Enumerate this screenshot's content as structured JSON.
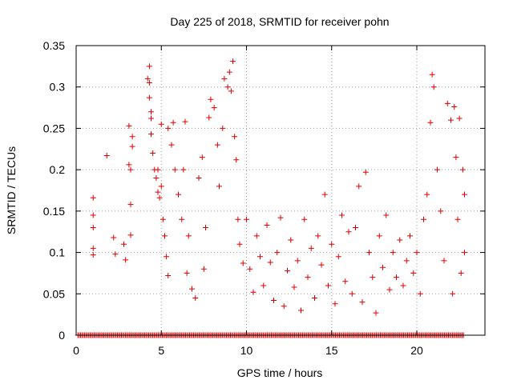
{
  "chart_data": {
    "type": "scatter",
    "title": "Day 225 of 2018, SRMTID for receiver pohn",
    "xlabel": "GPS time / hours",
    "ylabel": "SRMTID / TECUs",
    "xlim": [
      0,
      24
    ],
    "ylim": [
      0,
      0.35
    ],
    "grid": true,
    "marker": "+",
    "color": "#e00000",
    "x_ticks": [
      0,
      5,
      10,
      15,
      20
    ],
    "x_tick_labels": [
      "0",
      "5",
      "10",
      "15",
      "20"
    ],
    "y_ticks": [
      0,
      0.05,
      0.1,
      0.15,
      0.2,
      0.25,
      0.3,
      0.35
    ],
    "y_tick_labels": [
      "0",
      "0.05",
      "0.1",
      "0.15",
      "0.2",
      "0.25",
      "0.3",
      "0.35"
    ],
    "series": [
      {
        "name": "SRMTID",
        "description": "Dense scatter; representative sample points read from figure (hours, TECU)",
        "points": [
          [
            1.0,
            0.166
          ],
          [
            1.0,
            0.145
          ],
          [
            1.0,
            0.13
          ],
          [
            1.0,
            0.105
          ],
          [
            1.0,
            0.097
          ],
          [
            1.8,
            0.217
          ],
          [
            2.2,
            0.118
          ],
          [
            2.3,
            0.098
          ],
          [
            2.8,
            0.11
          ],
          [
            2.9,
            0.091
          ],
          [
            3.1,
            0.253
          ],
          [
            3.1,
            0.206
          ],
          [
            3.2,
            0.2
          ],
          [
            3.2,
            0.158
          ],
          [
            3.3,
            0.24
          ],
          [
            3.3,
            0.228
          ],
          [
            3.2,
            0.121
          ],
          [
            4.2,
            0.31
          ],
          [
            4.3,
            0.325
          ],
          [
            4.3,
            0.305
          ],
          [
            4.3,
            0.287
          ],
          [
            4.4,
            0.27
          ],
          [
            4.4,
            0.262
          ],
          [
            4.4,
            0.243
          ],
          [
            4.5,
            0.22
          ],
          [
            4.6,
            0.2
          ],
          [
            4.7,
            0.19
          ],
          [
            4.8,
            0.2
          ],
          [
            4.8,
            0.173
          ],
          [
            4.9,
            0.166
          ],
          [
            5.0,
            0.255
          ],
          [
            5.0,
            0.18
          ],
          [
            5.1,
            0.14
          ],
          [
            5.2,
            0.12
          ],
          [
            5.3,
            0.095
          ],
          [
            5.4,
            0.25
          ],
          [
            5.4,
            0.072
          ],
          [
            5.6,
            0.23
          ],
          [
            5.7,
            0.257
          ],
          [
            5.8,
            0.2
          ],
          [
            6.0,
            0.17
          ],
          [
            6.2,
            0.14
          ],
          [
            6.3,
            0.2
          ],
          [
            6.4,
            0.258
          ],
          [
            6.5,
            0.075
          ],
          [
            6.6,
            0.12
          ],
          [
            6.8,
            0.056
          ],
          [
            7.0,
            0.045
          ],
          [
            7.2,
            0.19
          ],
          [
            7.4,
            0.215
          ],
          [
            7.5,
            0.08
          ],
          [
            7.6,
            0.13
          ],
          [
            7.8,
            0.263
          ],
          [
            7.9,
            0.285
          ],
          [
            8.1,
            0.275
          ],
          [
            8.3,
            0.23
          ],
          [
            8.4,
            0.18
          ],
          [
            8.6,
            0.25
          ],
          [
            8.7,
            0.31
          ],
          [
            8.9,
            0.3
          ],
          [
            9.0,
            0.318
          ],
          [
            9.1,
            0.295
          ],
          [
            9.2,
            0.331
          ],
          [
            9.3,
            0.24
          ],
          [
            9.4,
            0.212
          ],
          [
            9.5,
            0.14
          ],
          [
            9.6,
            0.11
          ],
          [
            9.8,
            0.087
          ],
          [
            10.0,
            0.14
          ],
          [
            10.2,
            0.08
          ],
          [
            10.4,
            0.052
          ],
          [
            10.6,
            0.12
          ],
          [
            10.8,
            0.095
          ],
          [
            11.0,
            0.06
          ],
          [
            11.2,
            0.133
          ],
          [
            11.4,
            0.088
          ],
          [
            11.6,
            0.042
          ],
          [
            11.8,
            0.1
          ],
          [
            12.0,
            0.142
          ],
          [
            12.2,
            0.035
          ],
          [
            12.4,
            0.078
          ],
          [
            12.6,
            0.115
          ],
          [
            12.8,
            0.058
          ],
          [
            13.0,
            0.09
          ],
          [
            13.2,
            0.03
          ],
          [
            13.4,
            0.14
          ],
          [
            13.6,
            0.07
          ],
          [
            13.8,
            0.105
          ],
          [
            14.0,
            0.045
          ],
          [
            14.2,
            0.12
          ],
          [
            14.4,
            0.085
          ],
          [
            14.6,
            0.17
          ],
          [
            14.8,
            0.06
          ],
          [
            15.0,
            0.11
          ],
          [
            15.2,
            0.038
          ],
          [
            15.4,
            0.095
          ],
          [
            15.6,
            0.145
          ],
          [
            15.8,
            0.065
          ],
          [
            16.0,
            0.125
          ],
          [
            16.2,
            0.05
          ],
          [
            16.4,
            0.13
          ],
          [
            16.6,
            0.18
          ],
          [
            16.8,
            0.04
          ],
          [
            17.0,
            0.197
          ],
          [
            17.2,
            0.1
          ],
          [
            17.4,
            0.07
          ],
          [
            17.6,
            0.027
          ],
          [
            17.8,
            0.12
          ],
          [
            18.0,
            0.082
          ],
          [
            18.2,
            0.145
          ],
          [
            18.4,
            0.055
          ],
          [
            18.6,
            0.1
          ],
          [
            18.8,
            0.07
          ],
          [
            19.0,
            0.115
          ],
          [
            19.2,
            0.06
          ],
          [
            19.4,
            0.09
          ],
          [
            19.6,
            0.12
          ],
          [
            19.8,
            0.075
          ],
          [
            20.0,
            0.1
          ],
          [
            20.2,
            0.05
          ],
          [
            20.4,
            0.14
          ],
          [
            20.6,
            0.17
          ],
          [
            20.8,
            0.257
          ],
          [
            20.9,
            0.315
          ],
          [
            21.0,
            0.3
          ],
          [
            21.2,
            0.2
          ],
          [
            21.4,
            0.15
          ],
          [
            21.6,
            0.09
          ],
          [
            21.8,
            0.28
          ],
          [
            22.0,
            0.26
          ],
          [
            22.1,
            0.05
          ],
          [
            22.2,
            0.276
          ],
          [
            22.3,
            0.215
          ],
          [
            22.4,
            0.14
          ],
          [
            22.5,
            0.262
          ],
          [
            22.6,
            0.075
          ],
          [
            22.7,
            0.2
          ],
          [
            22.8,
            0.17
          ],
          [
            22.8,
            0.1
          ]
        ],
        "zero_band": {
          "description": "row of markers at y = 0 along the axis",
          "x_range": [
            0.1,
            22.8
          ],
          "y": 0
        }
      }
    ]
  }
}
